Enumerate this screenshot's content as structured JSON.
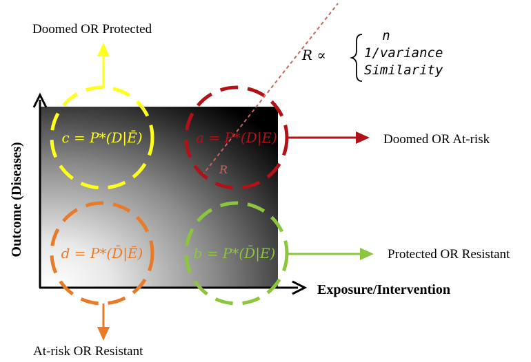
{
  "labels": {
    "top_outcome": "Doomed OR Protected",
    "right_a": "Doomed OR At-risk",
    "right_b": "Protected OR Resistant",
    "bottom_outcome": "At-risk OR Resistant",
    "x_axis": "Exposure/Intervention",
    "y_axis": "Outcome (Diseases)"
  },
  "formula": {
    "lhs": "R ∝",
    "line1": "n",
    "line2": "1/variance",
    "line3": "Similarity"
  },
  "cells": {
    "a": "a = P*(D|E)",
    "b": "b = P*(D̄|E)",
    "c": "c = P*(D|Ē)",
    "d": "d = P*(D̄|Ē)"
  },
  "radius_label": "R",
  "colors": {
    "a": "#b01218",
    "b": "#8cc63f",
    "c": "#ffff1e",
    "d": "#e87a28",
    "radius_line": "#c8645f"
  }
}
